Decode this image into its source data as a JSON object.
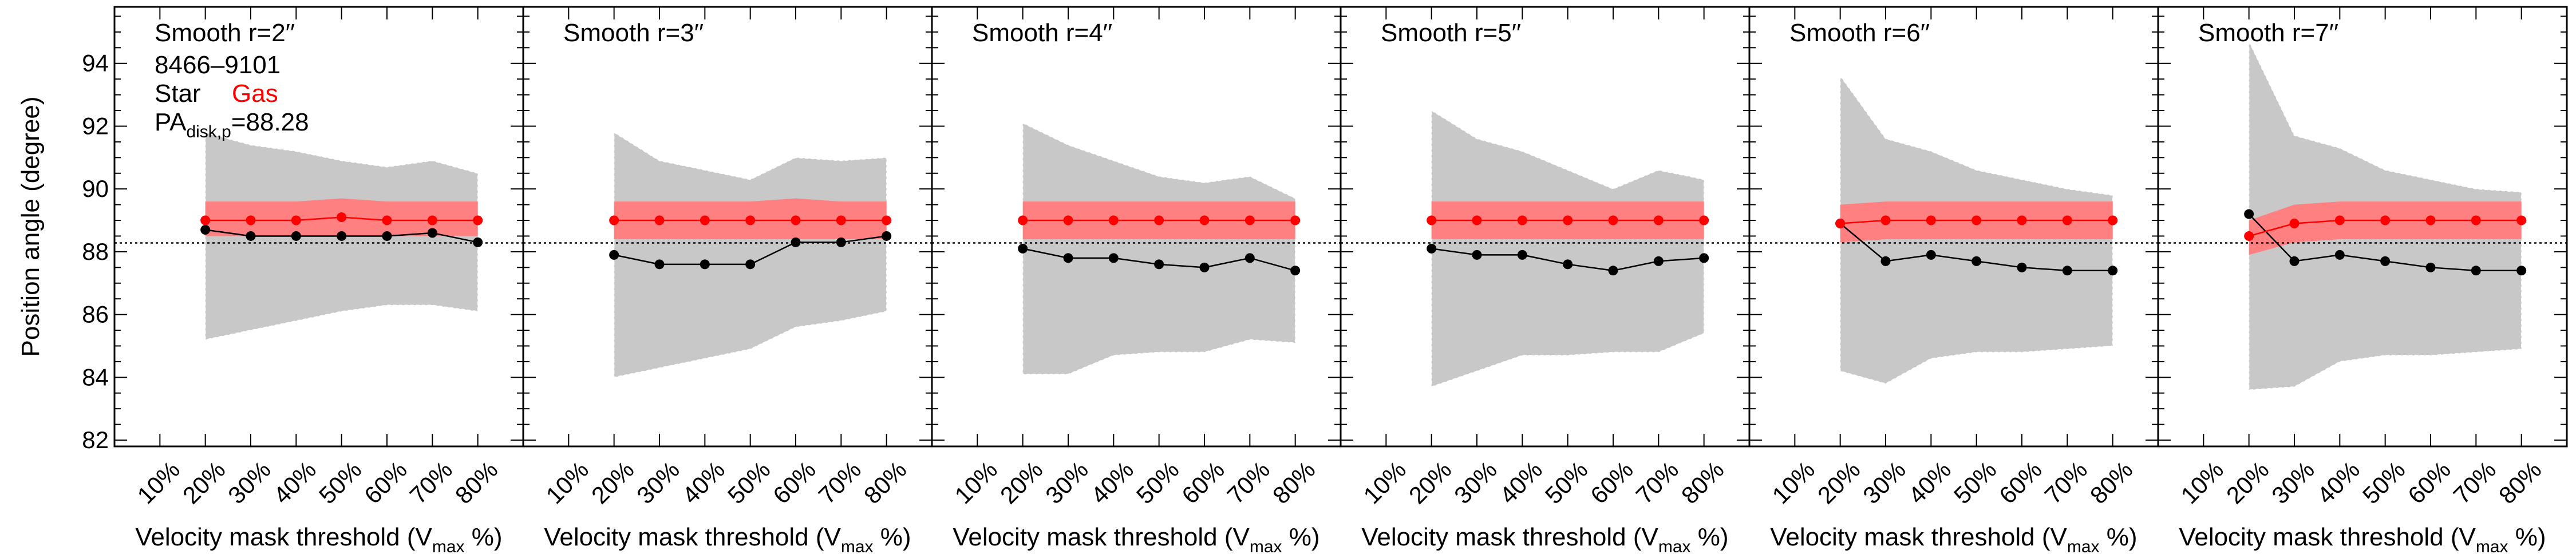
{
  "figure": {
    "ylabel": "Position angle (degree)",
    "y_ticks": [
      "82",
      "84",
      "86",
      "88",
      "90",
      "92",
      "94"
    ],
    "x_ticks": [
      "10%",
      "20%",
      "30%",
      "40%",
      "50%",
      "60%",
      "70%",
      "80%"
    ],
    "xlabel_main": "Velocity mask threshold (V",
    "xlabel_sub": "max",
    "xlabel_tail": " %)",
    "info": {
      "id": "8466–9101",
      "star_label": "Star",
      "gas_label": "Gas",
      "pa_main": "PA",
      "pa_sub": "disk,p",
      "pa_value": "=88.28"
    }
  },
  "colors": {
    "star": "#000000",
    "gas": "#ff0000",
    "gas_band": "#ff8080",
    "star_band": "#c8c8c8",
    "reference_line": "#000000"
  },
  "chart_data": [
    {
      "type": "line",
      "title": "Smooth r=2′′",
      "x": [
        20,
        30,
        40,
        50,
        60,
        70,
        80
      ],
      "xlim": [
        0,
        90
      ],
      "ylim": [
        81.8,
        95.8
      ],
      "reference_line": 88.28,
      "series": [
        {
          "name": "Star",
          "values": [
            88.7,
            88.5,
            88.5,
            88.5,
            88.5,
            88.6,
            88.3
          ],
          "band_low": [
            85.2,
            85.5,
            85.8,
            86.1,
            86.3,
            86.3,
            86.1
          ],
          "band_high": [
            91.8,
            91.4,
            91.2,
            90.9,
            90.7,
            90.9,
            90.5
          ]
        },
        {
          "name": "Gas",
          "values": [
            89.0,
            89.0,
            89.0,
            89.1,
            89.0,
            89.0,
            89.0
          ],
          "band_low": [
            88.5,
            88.5,
            88.5,
            88.5,
            88.5,
            88.5,
            88.5
          ],
          "band_high": [
            89.6,
            89.6,
            89.6,
            89.7,
            89.6,
            89.6,
            89.6
          ]
        }
      ]
    },
    {
      "type": "line",
      "title": "Smooth r=3′′",
      "x": [
        20,
        30,
        40,
        50,
        60,
        70,
        80
      ],
      "xlim": [
        0,
        90
      ],
      "ylim": [
        81.8,
        95.8
      ],
      "reference_line": 88.28,
      "series": [
        {
          "name": "Star",
          "values": [
            87.9,
            87.6,
            87.6,
            87.6,
            88.3,
            88.3,
            88.5
          ],
          "band_low": [
            84.0,
            84.3,
            84.6,
            84.9,
            85.6,
            85.8,
            86.1
          ],
          "band_high": [
            91.8,
            90.9,
            90.6,
            90.3,
            91.0,
            90.9,
            91.0
          ]
        },
        {
          "name": "Gas",
          "values": [
            89.0,
            89.0,
            89.0,
            89.0,
            89.0,
            89.0,
            89.0
          ],
          "band_low": [
            88.4,
            88.4,
            88.4,
            88.4,
            88.4,
            88.4,
            88.4
          ],
          "band_high": [
            89.6,
            89.6,
            89.6,
            89.6,
            89.7,
            89.6,
            89.6
          ]
        }
      ]
    },
    {
      "type": "line",
      "title": "Smooth r=4′′",
      "x": [
        20,
        30,
        40,
        50,
        60,
        70,
        80
      ],
      "xlim": [
        0,
        90
      ],
      "ylim": [
        81.8,
        95.8
      ],
      "reference_line": 88.28,
      "series": [
        {
          "name": "Star",
          "values": [
            88.1,
            87.8,
            87.8,
            87.6,
            87.5,
            87.8,
            87.4
          ],
          "band_low": [
            84.1,
            84.1,
            84.7,
            84.8,
            84.8,
            85.2,
            85.1
          ],
          "band_high": [
            92.1,
            91.4,
            90.9,
            90.4,
            90.2,
            90.4,
            89.7
          ]
        },
        {
          "name": "Gas",
          "values": [
            89.0,
            89.0,
            89.0,
            89.0,
            89.0,
            89.0,
            89.0
          ],
          "band_low": [
            88.4,
            88.4,
            88.4,
            88.4,
            88.4,
            88.4,
            88.4
          ],
          "band_high": [
            89.6,
            89.6,
            89.6,
            89.6,
            89.6,
            89.6,
            89.6
          ]
        }
      ]
    },
    {
      "type": "line",
      "title": "Smooth r=5′′",
      "x": [
        20,
        30,
        40,
        50,
        60,
        70,
        80
      ],
      "xlim": [
        0,
        90
      ],
      "ylim": [
        81.8,
        95.8
      ],
      "reference_line": 88.28,
      "series": [
        {
          "name": "Star",
          "values": [
            88.1,
            87.9,
            87.9,
            87.6,
            87.4,
            87.7,
            87.8
          ],
          "band_low": [
            83.7,
            84.2,
            84.7,
            84.7,
            84.8,
            84.8,
            85.4
          ],
          "band_high": [
            92.5,
            91.6,
            91.2,
            90.6,
            90.0,
            90.6,
            90.3
          ]
        },
        {
          "name": "Gas",
          "values": [
            89.0,
            89.0,
            89.0,
            89.0,
            89.0,
            89.0,
            89.0
          ],
          "band_low": [
            88.4,
            88.4,
            88.4,
            88.4,
            88.4,
            88.4,
            88.4
          ],
          "band_high": [
            89.6,
            89.6,
            89.6,
            89.6,
            89.6,
            89.6,
            89.6
          ]
        }
      ]
    },
    {
      "type": "line",
      "title": "Smooth r=6′′",
      "x": [
        20,
        30,
        40,
        50,
        60,
        70,
        80
      ],
      "xlim": [
        0,
        90
      ],
      "ylim": [
        81.8,
        95.8
      ],
      "reference_line": 88.28,
      "series": [
        {
          "name": "Star",
          "values": [
            88.9,
            87.7,
            87.9,
            87.7,
            87.5,
            87.4,
            87.4
          ],
          "band_low": [
            84.2,
            83.8,
            84.6,
            84.8,
            84.8,
            84.9,
            85.0
          ],
          "band_high": [
            93.6,
            91.6,
            91.2,
            90.6,
            90.3,
            90.0,
            89.8
          ]
        },
        {
          "name": "Gas",
          "values": [
            88.9,
            89.0,
            89.0,
            89.0,
            89.0,
            89.0,
            89.0
          ],
          "band_low": [
            88.3,
            88.4,
            88.4,
            88.4,
            88.4,
            88.4,
            88.4
          ],
          "band_high": [
            89.5,
            89.6,
            89.6,
            89.6,
            89.6,
            89.6,
            89.6
          ]
        }
      ]
    },
    {
      "type": "line",
      "title": "Smooth r=7′′",
      "x": [
        20,
        30,
        40,
        50,
        60,
        70,
        80
      ],
      "xlim": [
        0,
        90
      ],
      "ylim": [
        81.8,
        95.8
      ],
      "reference_line": 88.28,
      "series": [
        {
          "name": "Star",
          "values": [
            89.2,
            87.7,
            87.9,
            87.7,
            87.5,
            87.4,
            87.4
          ],
          "band_low": [
            83.6,
            83.7,
            84.5,
            84.7,
            84.7,
            84.8,
            84.9
          ],
          "band_high": [
            94.7,
            91.7,
            91.3,
            90.6,
            90.3,
            90.0,
            89.9
          ]
        },
        {
          "name": "Gas",
          "values": [
            88.5,
            88.9,
            89.0,
            89.0,
            89.0,
            89.0,
            89.0
          ],
          "band_low": [
            87.9,
            88.3,
            88.4,
            88.4,
            88.4,
            88.4,
            88.4
          ],
          "band_high": [
            89.0,
            89.5,
            89.6,
            89.6,
            89.6,
            89.6,
            89.6
          ]
        }
      ]
    }
  ]
}
